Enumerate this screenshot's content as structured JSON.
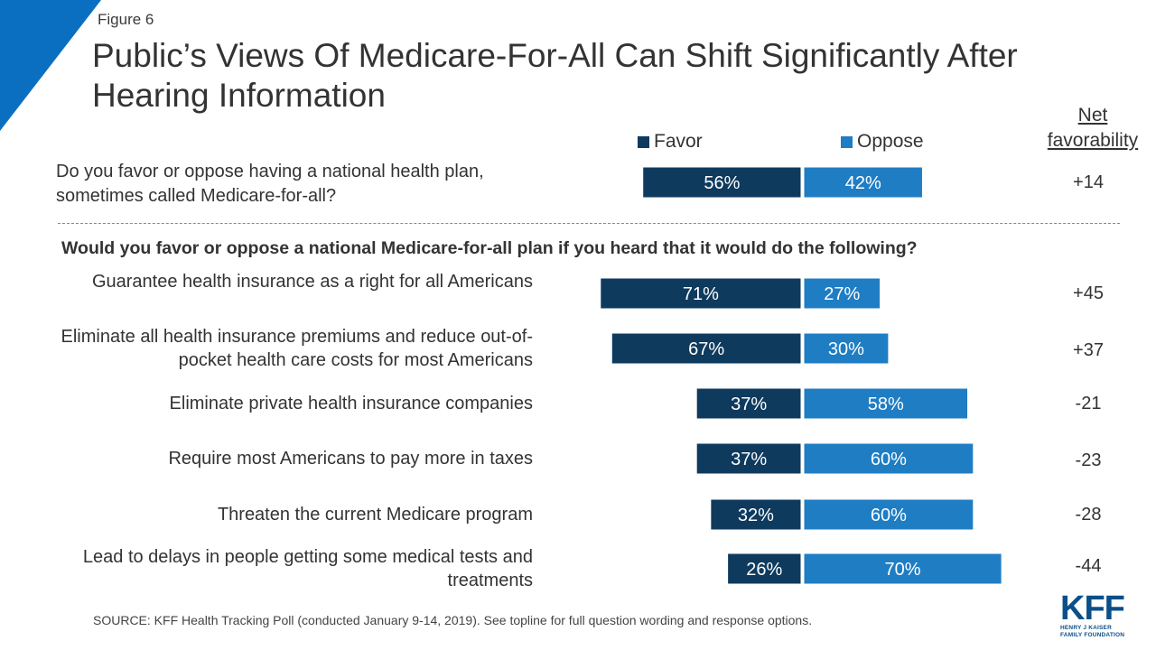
{
  "figure_label": "Figure 6",
  "title": "Public’s Views Of Medicare-For-All Can Shift Significantly After Hearing Information",
  "legend": {
    "favor": "Favor",
    "oppose": "Oppose"
  },
  "net_header": "Net favorability",
  "colors": {
    "favor": "#0e3a5e",
    "oppose": "#1f7dc4",
    "accent": "#0b6fc1"
  },
  "subheading": "Would you favor or oppose a national Medicare-for-all plan if you heard that it would do the following?",
  "source": "SOURCE: KFF Health Tracking Poll (conducted January 9-14, 2019). See topline for full question wording and response options.",
  "logo": {
    "main": "KFF",
    "line1": "HENRY J KAISER",
    "line2": "FAMILY FOUNDATION"
  },
  "chart_data": {
    "type": "bar",
    "orientation": "horizontal-diverging",
    "series": [
      {
        "name": "Favor",
        "values": [
          56,
          71,
          67,
          37,
          37,
          32,
          26
        ]
      },
      {
        "name": "Oppose",
        "values": [
          42,
          27,
          30,
          58,
          60,
          60,
          70
        ]
      }
    ],
    "categories": [
      "Do you favor or oppose having a national health plan, sometimes called Medicare-for-all?",
      "Guarantee health insurance as a right for all Americans",
      "Eliminate all health insurance premiums and reduce out-of-pocket health care costs for most Americans",
      "Eliminate private health insurance companies",
      "Require most Americans to pay more in taxes",
      "Threaten the current Medicare program",
      "Lead to delays in people getting some medical tests and treatments"
    ],
    "value_labels": {
      "favor": [
        "56%",
        "71%",
        "67%",
        "37%",
        "37%",
        "32%",
        "26%"
      ],
      "oppose": [
        "42%",
        "27%",
        "30%",
        "58%",
        "60%",
        "60%",
        "70%"
      ]
    },
    "net_favorability": [
      "+14",
      "+45",
      "+37",
      "-21",
      "-23",
      "-28",
      "-44"
    ],
    "xlim": [
      0,
      100
    ]
  }
}
